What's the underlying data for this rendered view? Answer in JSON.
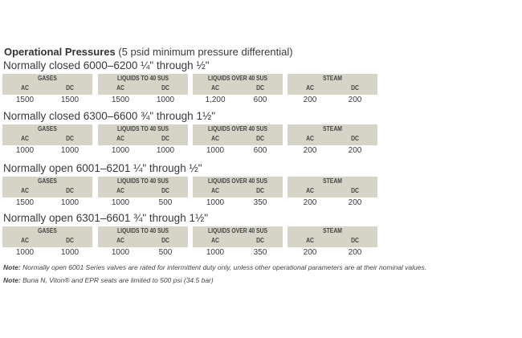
{
  "heading": {
    "bold": "Operational Pressures",
    "rest": " (5 psid minimum pressure differential)"
  },
  "groups": [
    "GASES",
    "LIQUIDS TO 40 SUS",
    "LIQUIDS OVER 40 SUS",
    "STEAM"
  ],
  "sub": {
    "ac": "AC",
    "dc": "DC"
  },
  "sections": [
    {
      "title": "Normally closed 6000–6200 ¼\" through ½\"",
      "values": [
        "1500",
        "1500",
        "1500",
        "1000",
        "1,200",
        "600",
        "200",
        "200"
      ]
    },
    {
      "title": "Normally closed 6300–6600 ¾\" through 1½\"",
      "values": [
        "1000",
        "1000",
        "1000",
        "1000",
        "1000",
        "600",
        "200",
        "200"
      ]
    },
    {
      "title": "Normally open 6001–6201 ¼\" through ½\"",
      "values": [
        "1500",
        "1000",
        "1000",
        "500",
        "1000",
        "350",
        "200",
        "200"
      ]
    },
    {
      "title": "Normally open 6301–6601 ¾\" through 1½\"",
      "values": [
        "1000",
        "1000",
        "1000",
        "500",
        "1000",
        "350",
        "200",
        "200"
      ]
    }
  ],
  "notes": [
    {
      "label": "Note:",
      "text": " Normally open 6001 Series valves are rated for intermittent duty only, unless other operational parameters are at their nominal values."
    },
    {
      "label": "Note:",
      "text": " Buna N, Viton® and EPR seats are limited to 500 psi (34.5 bar)"
    }
  ]
}
